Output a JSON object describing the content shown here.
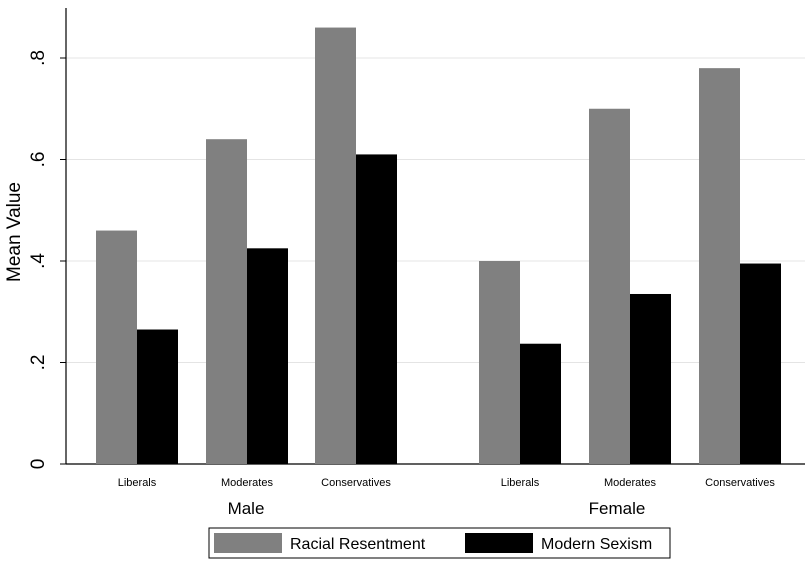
{
  "chart_data": {
    "type": "bar",
    "ylabel": "Mean Value",
    "ylim": [
      0,
      0.9
    ],
    "yticks": [
      0,
      0.2,
      0.4,
      0.6,
      0.8
    ],
    "ytick_labels": [
      "0",
      ".2",
      ".4",
      ".6",
      ".8"
    ],
    "grid": "horizontal",
    "groups": [
      {
        "name": "Male",
        "categories": [
          "Liberals",
          "Moderates",
          "Conservatives"
        ]
      },
      {
        "name": "Female",
        "categories": [
          "Liberals",
          "Moderates",
          "Conservatives"
        ]
      }
    ],
    "series": [
      {
        "name": "Racial Resentment",
        "color": "#808080",
        "values": [
          0.46,
          0.64,
          0.86,
          0.4,
          0.7,
          0.78
        ]
      },
      {
        "name": "Modern Sexism",
        "color": "#000000",
        "values": [
          0.265,
          0.425,
          0.61,
          0.237,
          0.335,
          0.395
        ]
      }
    ],
    "legend_position": "bottom"
  }
}
